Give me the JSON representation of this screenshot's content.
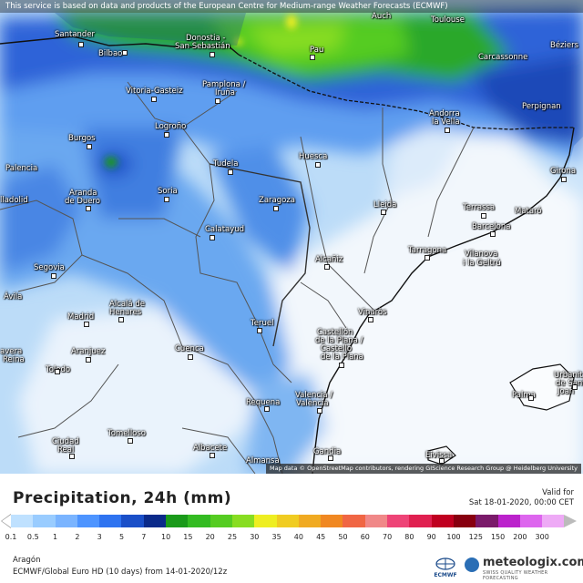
{
  "banner": "This service is based on data and products of the European Centre for Medium-range Weather Forecasts (ECMWF)",
  "attribution": "Map data © OpenStreetMap contributors, rendering GIScience Research Group @ Heidelberg University",
  "cities": [
    {
      "name": "Santander"
    },
    {
      "name": "Bilbao"
    },
    {
      "name": "Donostia -"
    },
    {
      "name": "San Sebastián"
    },
    {
      "name": "Pau"
    },
    {
      "name": "Auch"
    },
    {
      "name": "Toulouse"
    },
    {
      "name": "Béziers"
    },
    {
      "name": "Carcassonne"
    },
    {
      "name": "Perpignan"
    },
    {
      "name": "Vitoria-Gasteiz"
    },
    {
      "name": "Pamplona /"
    },
    {
      "name": "Iruña"
    },
    {
      "name": "Andorra"
    },
    {
      "name": "la Vella"
    },
    {
      "name": "Logroño"
    },
    {
      "name": "Burgos"
    },
    {
      "name": "Palencia"
    },
    {
      "name": "Tudela"
    },
    {
      "name": "Huesca"
    },
    {
      "name": "Girona"
    },
    {
      "name": "Aranda"
    },
    {
      "name": "de Duero"
    },
    {
      "name": "Soria"
    },
    {
      "name": "Zaragoza"
    },
    {
      "name": "Lleida"
    },
    {
      "name": "Terrassa"
    },
    {
      "name": "Mataró"
    },
    {
      "name": "Barcelona"
    },
    {
      "name": "lladolid"
    },
    {
      "name": "Calatayud"
    },
    {
      "name": "Tarragona"
    },
    {
      "name": "Vilanova"
    },
    {
      "name": "i la Geltrú"
    },
    {
      "name": "Segovia"
    },
    {
      "name": "Alcañiz"
    },
    {
      "name": "Ávila"
    },
    {
      "name": "Alcalá de"
    },
    {
      "name": "Henares"
    },
    {
      "name": "Madrid"
    },
    {
      "name": "Vinaròs"
    },
    {
      "name": "Teruel"
    },
    {
      "name": "Castellón"
    },
    {
      "name": "de la Plana /"
    },
    {
      "name": "Castelló"
    },
    {
      "name": "de la Plana"
    },
    {
      "name": "avera"
    },
    {
      "name": "Reina"
    },
    {
      "name": "Aranjuez"
    },
    {
      "name": "Cuenca"
    },
    {
      "name": "Toledo"
    },
    {
      "name": "Urbanit"
    },
    {
      "name": "de Sant"
    },
    {
      "name": "Joan"
    },
    {
      "name": "Palma"
    },
    {
      "name": "Requena"
    },
    {
      "name": "Valencia /"
    },
    {
      "name": "València"
    },
    {
      "name": "Ciudad"
    },
    {
      "name": "Real"
    },
    {
      "name": "Tomelloso"
    },
    {
      "name": "Albacete"
    },
    {
      "name": "Almansa"
    },
    {
      "name": "Gandia"
    },
    {
      "name": "Eivissa"
    }
  ],
  "legend": {
    "title": "Precipitation, 24h (mm)",
    "valid_label": "Valid for",
    "valid_time": "Sat 18-01-2020, 00:00 CET",
    "ticks": [
      "0.1",
      "0.5",
      "1",
      "2",
      "3",
      "5",
      "7",
      "10",
      "15",
      "20",
      "25",
      "30",
      "35",
      "40",
      "45",
      "50",
      "60",
      "70",
      "80",
      "90",
      "100",
      "125",
      "150",
      "200",
      "300"
    ],
    "colors": [
      "#bfe1ff",
      "#99ccff",
      "#7ab4ff",
      "#4d94ff",
      "#2e73f0",
      "#1a4fc8",
      "#0a2a8a",
      "#1a9a1a",
      "#33bb22",
      "#55cc22",
      "#88dd22",
      "#eeee22",
      "#f0cc22",
      "#f0aa22",
      "#f08822",
      "#f06644",
      "#f08888",
      "#ee4477",
      "#e02050",
      "#c00020",
      "#880010",
      "#7a1a6a",
      "#bb22cc",
      "#dd66ee",
      "#eeaaf6",
      "#f6d8fa",
      "#dddddd"
    ]
  },
  "region": "Aragón",
  "model_line": "ECMWF/Global Euro HD (10 days) from 14-01-2020/12z",
  "brand": {
    "ecmwf": "ECMWF",
    "name": "meteologix.com",
    "tagline": "SWISS QUALITY WEATHER FORECASTING"
  }
}
